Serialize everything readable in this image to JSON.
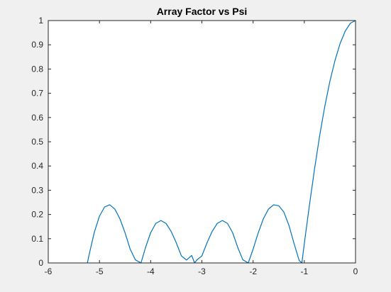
{
  "chart_data": {
    "type": "line",
    "title": "Array Factor vs Psi",
    "xlabel": "",
    "ylabel": "",
    "xlim": [
      -6,
      0
    ],
    "ylim": [
      0,
      1
    ],
    "xticks": [
      -6,
      -5,
      -4,
      -3,
      -2,
      -1,
      0
    ],
    "yticks": [
      0,
      0.1,
      0.2,
      0.3,
      0.4,
      0.5,
      0.6,
      0.7,
      0.8,
      0.9,
      1
    ],
    "xtick_labels": [
      "-6",
      "-5",
      "-4",
      "-3",
      "-2",
      "-1",
      "0"
    ],
    "ytick_labels": [
      "0",
      "0.1",
      "0.2",
      "0.3",
      "0.4",
      "0.5",
      "0.6",
      "0.7",
      "0.8",
      "0.9",
      "1"
    ],
    "grid": false,
    "line_color": "#0072bd",
    "series": [
      {
        "x": [
          -5.236,
          -5.2,
          -5.1,
          -5.0,
          -4.9,
          -4.8,
          -4.7,
          -4.6,
          -4.5,
          -4.4,
          -4.3,
          -4.189,
          -4.1,
          -4.0,
          -3.9,
          -3.8,
          -3.7,
          -3.6,
          -3.5,
          -3.4,
          -3.3,
          -3.2,
          -3.142,
          -3.1,
          -3.0,
          -2.9,
          -2.8,
          -2.7,
          -2.6,
          -2.5,
          -2.4,
          -2.3,
          -2.2,
          -2.094,
          -2.0,
          -1.9,
          -1.8,
          -1.7,
          -1.6,
          -1.5,
          -1.4,
          -1.3,
          -1.2,
          -1.1,
          -1.047,
          -1.0,
          -0.9,
          -0.8,
          -0.7,
          -0.6,
          -0.5,
          -0.4,
          -0.3,
          -0.2,
          -0.1,
          0
        ],
        "y": [
          0,
          0.036,
          0.127,
          0.193,
          0.231,
          0.24,
          0.222,
          0.182,
          0.124,
          0.057,
          0.013,
          0,
          0.064,
          0.125,
          0.163,
          0.175,
          0.163,
          0.13,
          0.083,
          0.029,
          0.012,
          0.031,
          0,
          0.012,
          0.029,
          0.083,
          0.13,
          0.163,
          0.175,
          0.163,
          0.125,
          0.064,
          0.013,
          0,
          0.057,
          0.124,
          0.182,
          0.222,
          0.24,
          0.236,
          0.21,
          0.155,
          0.08,
          0.01,
          0,
          0.08,
          0.238,
          0.388,
          0.525,
          0.646,
          0.75,
          0.836,
          0.906,
          0.957,
          0.989,
          1.0
        ]
      }
    ]
  }
}
